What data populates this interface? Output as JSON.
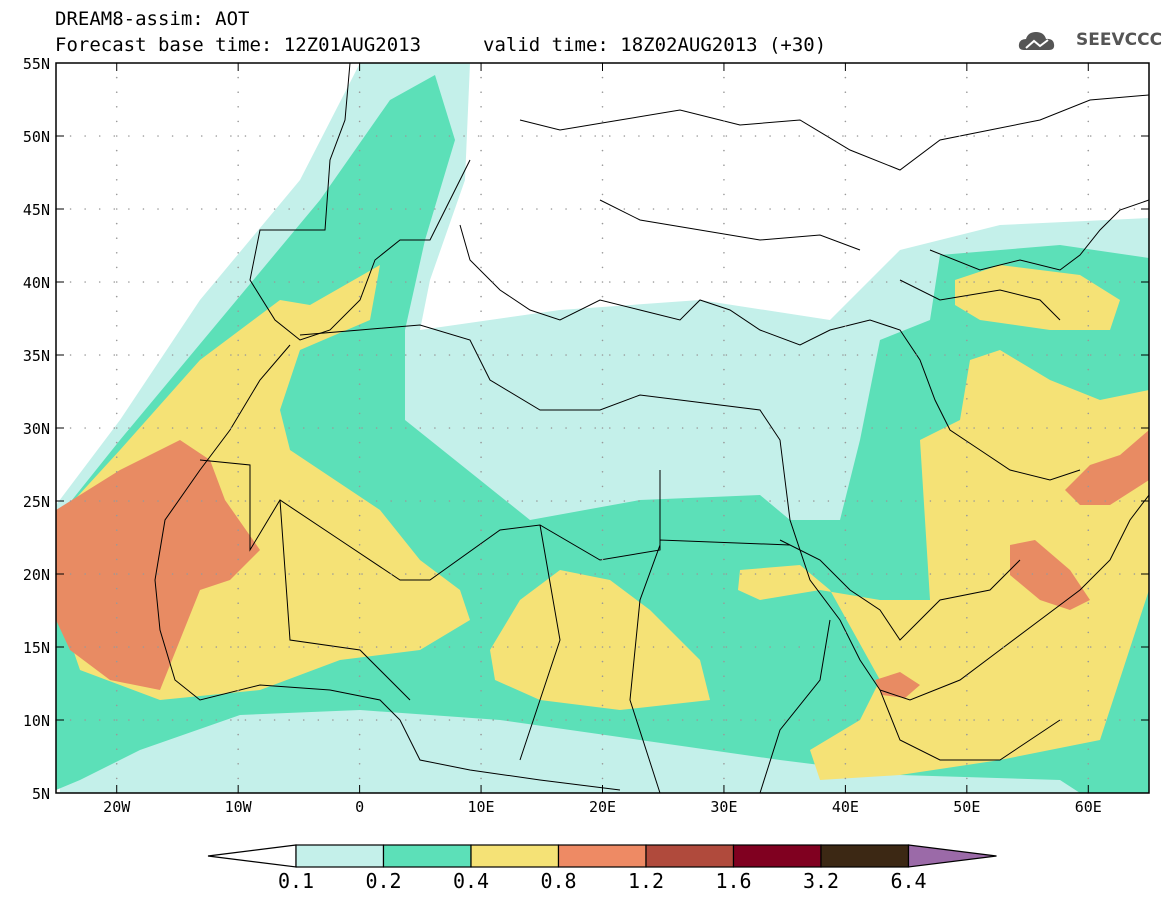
{
  "header": {
    "line1": "DREAM8-assim: AOT",
    "line2": "Forecast base time: 12Z01AUG2013",
    "line2b": "valid time: 18Z02AUG2013 (+30)"
  },
  "logo": {
    "text": "SEEVCCC",
    "icon": "cloud-icon"
  },
  "map": {
    "lat_labels": [
      "55N",
      "50N",
      "45N",
      "40N",
      "35N",
      "30N",
      "25N",
      "20N",
      "15N",
      "10N",
      "5N"
    ],
    "lon_labels": [
      "20W",
      "10W",
      "0",
      "10E",
      "20E",
      "30E",
      "40E",
      "50E",
      "60E"
    ],
    "lat_range": [
      5,
      55
    ],
    "lon_range": [
      -25,
      65
    ]
  },
  "legend": {
    "labels": [
      "0.1",
      "0.2",
      "0.4",
      "0.8",
      "1.2",
      "1.6",
      "3.2",
      "6.4"
    ],
    "colors": [
      "#ffffff",
      "#c4f0ea",
      "#5ce0b8",
      "#f5e276",
      "#ee8a64",
      "#b04a3c",
      "#800020",
      "#3c2814",
      "#9b6aa8"
    ]
  }
}
